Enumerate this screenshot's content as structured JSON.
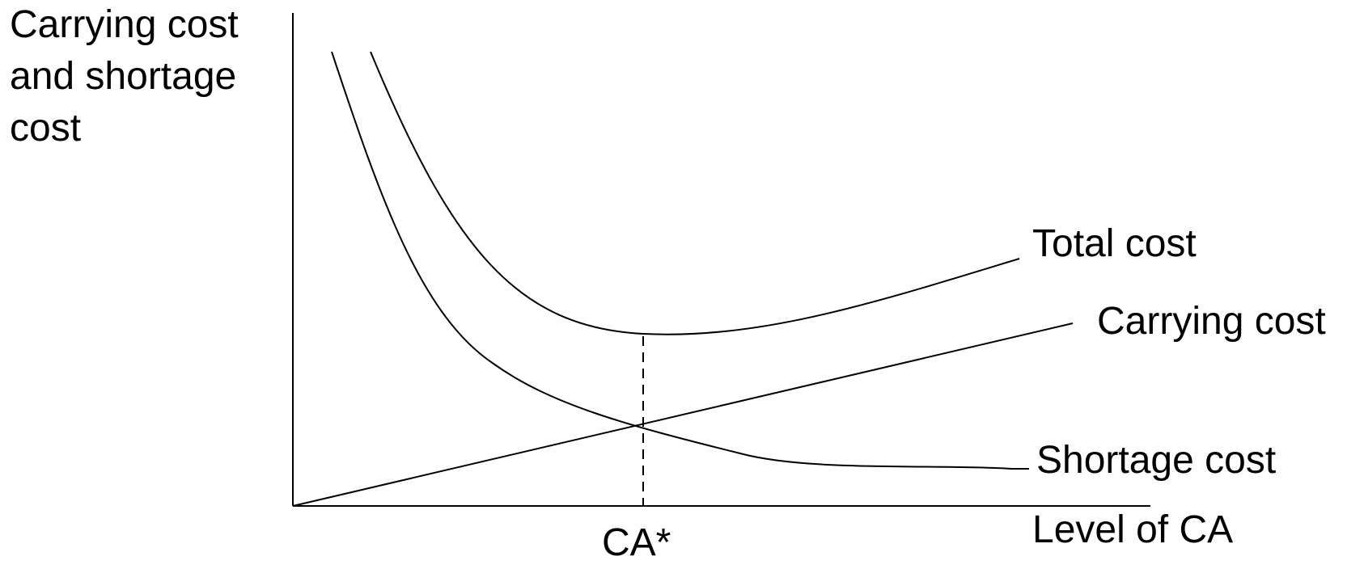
{
  "y_axis_label_lines": [
    "Carrying cost",
    "and shortage",
    "cost"
  ],
  "x_axis_label": "Level of CA",
  "curve_labels": {
    "total_cost": "Total cost",
    "carrying_cost": "Carrying cost",
    "shortage_cost": "Shortage cost"
  },
  "optimum_label": "CA*",
  "colors": {
    "line": "#000000",
    "background": "#ffffff"
  }
}
